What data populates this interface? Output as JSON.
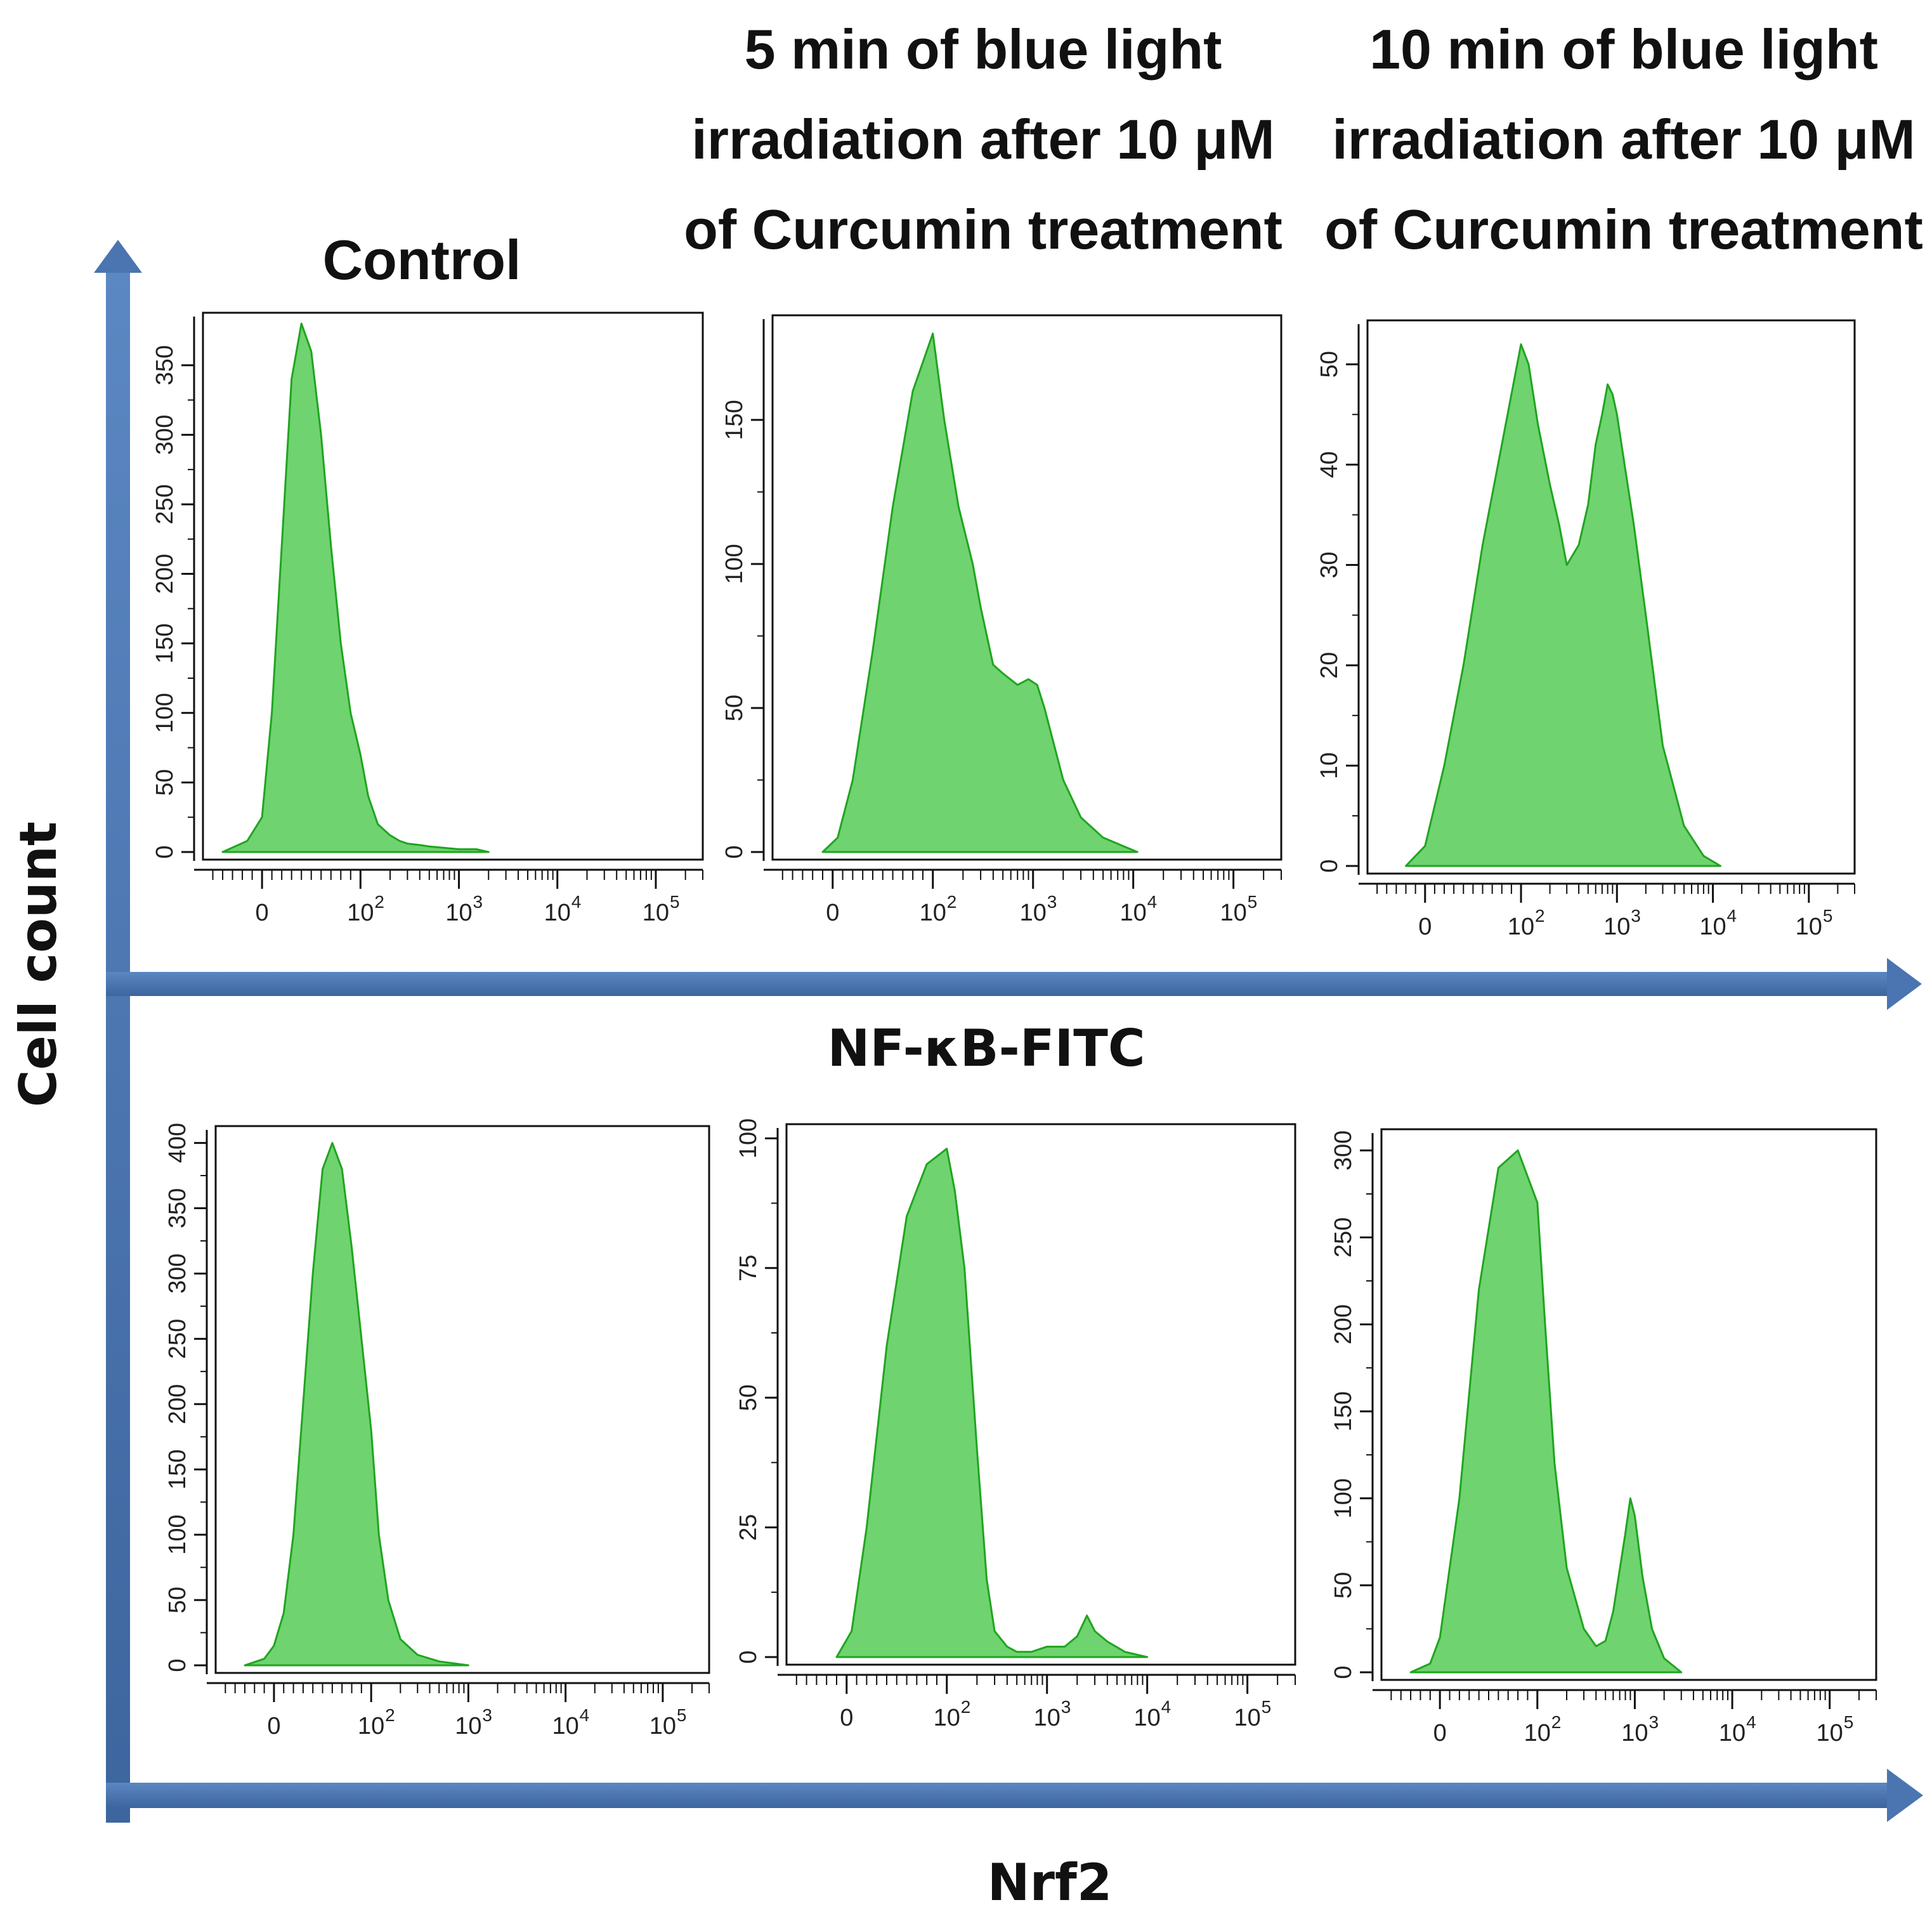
{
  "figure": {
    "column_titles": [
      [
        "Control"
      ],
      [
        "5 min of blue light",
        "irradiation after 10 μM",
        "of Curcumin treatment"
      ],
      [
        "10 min of blue light",
        "irradiation after 10 μM",
        "of Curcumin treatment"
      ]
    ],
    "y_axis_label": "Cell count",
    "row_labels": [
      "NF-κB-FITC",
      "Nrf2"
    ],
    "colors": {
      "fill": "#6fd36f",
      "stroke": "#1fa51f",
      "arrow": "#4a75b0"
    }
  },
  "chart_data": [
    {
      "type": "area",
      "marker": "NF-κB-FITC",
      "condition": "Control",
      "x_scale": "logicle",
      "x_ticks": [
        {
          "v": 0,
          "base": "0",
          "exp": ""
        },
        {
          "v": 100,
          "base": "10",
          "exp": "2"
        },
        {
          "v": 1000,
          "base": "10",
          "exp": "3"
        },
        {
          "v": 10000,
          "base": "10",
          "exp": "4"
        },
        {
          "v": 100000,
          "base": "10",
          "exp": "5"
        }
      ],
      "y_ticks": [
        0,
        50,
        100,
        150,
        200,
        250,
        300,
        350
      ],
      "ylim": [
        0,
        385
      ],
      "x": [
        -40,
        -15,
        0,
        10,
        20,
        30,
        40,
        50,
        60,
        70,
        80,
        90,
        100,
        120,
        150,
        200,
        250,
        300,
        400,
        500,
        700,
        1000,
        1500,
        2000
      ],
      "values": [
        0,
        8,
        25,
        100,
        220,
        340,
        380,
        360,
        300,
        220,
        150,
        100,
        70,
        40,
        20,
        12,
        8,
        6,
        5,
        4,
        3,
        2,
        2,
        0
      ]
    },
    {
      "type": "area",
      "marker": "NF-κB-FITC",
      "condition": "5 min of blue light irradiation after 10 μM of Curcumin treatment",
      "x_scale": "logicle",
      "x_ticks": [
        {
          "v": 0,
          "base": "0",
          "exp": ""
        },
        {
          "v": 100,
          "base": "10",
          "exp": "2"
        },
        {
          "v": 1000,
          "base": "10",
          "exp": "3"
        },
        {
          "v": 10000,
          "base": "10",
          "exp": "4"
        },
        {
          "v": 100000,
          "base": "10",
          "exp": "5"
        }
      ],
      "y_ticks": [
        0,
        50,
        100,
        150
      ],
      "ylim": [
        0,
        185
      ],
      "x": [
        -10,
        5,
        20,
        40,
        60,
        80,
        100,
        130,
        180,
        250,
        300,
        400,
        500,
        700,
        900,
        1100,
        1300,
        1600,
        2000,
        3000,
        5000,
        8000,
        11000
      ],
      "values": [
        0,
        5,
        25,
        70,
        120,
        160,
        180,
        150,
        120,
        100,
        85,
        65,
        62,
        58,
        60,
        58,
        50,
        38,
        25,
        12,
        5,
        2,
        0
      ]
    },
    {
      "type": "area",
      "marker": "NF-κB-FITC",
      "condition": "10 min of blue light irradiation after 10 μM of Curcumin treatment",
      "x_scale": "logicle",
      "x_ticks": [
        {
          "v": 0,
          "base": "0",
          "exp": ""
        },
        {
          "v": 100,
          "base": "10",
          "exp": "2"
        },
        {
          "v": 1000,
          "base": "10",
          "exp": "3"
        },
        {
          "v": 10000,
          "base": "10",
          "exp": "4"
        },
        {
          "v": 100000,
          "base": "10",
          "exp": "5"
        }
      ],
      "y_ticks": [
        0,
        10,
        20,
        30,
        40,
        50
      ],
      "ylim": [
        0,
        54
      ],
      "x": [
        -20,
        0,
        20,
        40,
        60,
        80,
        100,
        120,
        150,
        200,
        250,
        300,
        400,
        500,
        600,
        700,
        800,
        900,
        1000,
        1200,
        1500,
        2000,
        3000,
        5000,
        8000,
        12000
      ],
      "values": [
        0,
        2,
        10,
        20,
        32,
        42,
        52,
        50,
        44,
        38,
        34,
        30,
        32,
        36,
        42,
        45,
        48,
        47,
        45,
        40,
        34,
        25,
        12,
        4,
        1,
        0
      ]
    },
    {
      "type": "area",
      "marker": "Nrf2",
      "condition": "Control",
      "x_scale": "logicle",
      "x_ticks": [
        {
          "v": 0,
          "base": "0",
          "exp": ""
        },
        {
          "v": 100,
          "base": "10",
          "exp": "2"
        },
        {
          "v": 1000,
          "base": "10",
          "exp": "3"
        },
        {
          "v": 10000,
          "base": "10",
          "exp": "4"
        },
        {
          "v": 100000,
          "base": "10",
          "exp": "5"
        }
      ],
      "y_ticks": [
        0,
        50,
        100,
        150,
        200,
        250,
        300,
        350,
        400
      ],
      "ylim": [
        0,
        410
      ],
      "x": [
        -30,
        -10,
        0,
        10,
        20,
        30,
        40,
        50,
        60,
        70,
        80,
        90,
        100,
        120,
        150,
        200,
        300,
        500,
        1000
      ],
      "values": [
        0,
        5,
        15,
        40,
        100,
        200,
        300,
        380,
        400,
        380,
        320,
        250,
        180,
        100,
        50,
        20,
        8,
        3,
        0
      ]
    },
    {
      "type": "area",
      "marker": "Nrf2",
      "condition": "5 min of blue light irradiation after 10 μM of Curcumin treatment",
      "x_scale": "logicle",
      "x_ticks": [
        {
          "v": 0,
          "base": "0",
          "exp": ""
        },
        {
          "v": 100,
          "base": "10",
          "exp": "2"
        },
        {
          "v": 1000,
          "base": "10",
          "exp": "3"
        },
        {
          "v": 10000,
          "base": "10",
          "exp": "4"
        },
        {
          "v": 100000,
          "base": "10",
          "exp": "5"
        }
      ],
      "y_ticks": [
        0,
        25,
        50,
        75,
        100
      ],
      "ylim": [
        0,
        102
      ],
      "x": [
        -10,
        5,
        20,
        40,
        60,
        80,
        100,
        120,
        150,
        200,
        250,
        300,
        400,
        500,
        700,
        1000,
        1500,
        2000,
        2500,
        3000,
        4000,
        6000,
        10000
      ],
      "values": [
        0,
        5,
        25,
        60,
        85,
        95,
        98,
        90,
        75,
        40,
        15,
        5,
        2,
        1,
        1,
        2,
        2,
        4,
        8,
        5,
        3,
        1,
        0
      ]
    },
    {
      "type": "area",
      "marker": "Nrf2",
      "condition": "10 min of blue light irradiation after 10 μM of Curcumin treatment",
      "x_scale": "logicle",
      "x_ticks": [
        {
          "v": 0,
          "base": "0",
          "exp": ""
        },
        {
          "v": 100,
          "base": "10",
          "exp": "2"
        },
        {
          "v": 1000,
          "base": "10",
          "exp": "3"
        },
        {
          "v": 10000,
          "base": "10",
          "exp": "4"
        },
        {
          "v": 100000,
          "base": "10",
          "exp": "5"
        }
      ],
      "y_ticks": [
        0,
        50,
        100,
        150,
        200,
        250,
        300
      ],
      "ylim": [
        0,
        310
      ],
      "x": [
        -30,
        -10,
        0,
        20,
        40,
        60,
        80,
        100,
        120,
        150,
        200,
        300,
        400,
        500,
        600,
        800,
        900,
        1000,
        1200,
        1500,
        2000,
        3000
      ],
      "values": [
        0,
        5,
        20,
        100,
        220,
        290,
        300,
        270,
        200,
        120,
        60,
        25,
        15,
        18,
        35,
        80,
        100,
        90,
        55,
        25,
        8,
        0
      ]
    }
  ]
}
